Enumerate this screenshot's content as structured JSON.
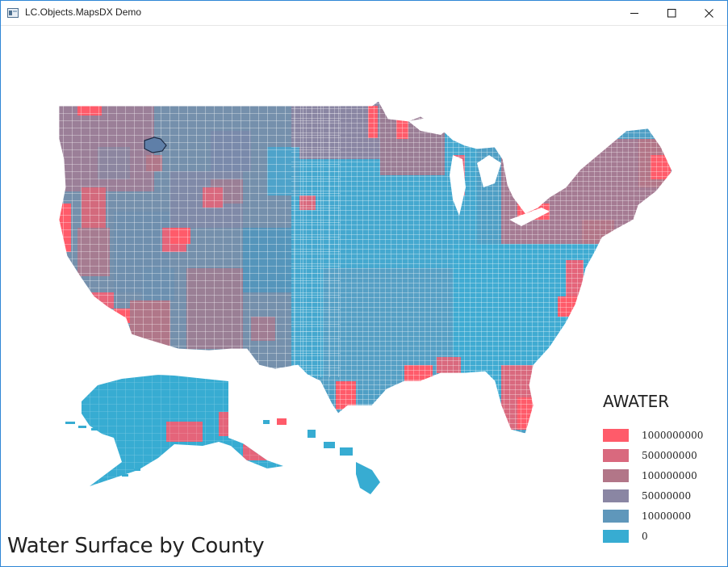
{
  "window": {
    "title": "LC.Objects.MapsDX Demo"
  },
  "map": {
    "title": "Water Surface by County",
    "legend": {
      "title": "AWATER",
      "items": [
        {
          "label": "1000000000",
          "color": "#ff5b6a"
        },
        {
          "label": "500000000",
          "color": "#d9697e"
        },
        {
          "label": "100000000",
          "color": "#b27688"
        },
        {
          "label": "50000000",
          "color": "#8a86a3"
        },
        {
          "label": "10000000",
          "color": "#5f97bb"
        },
        {
          "label": "0",
          "color": "#37acd2"
        }
      ]
    }
  }
}
